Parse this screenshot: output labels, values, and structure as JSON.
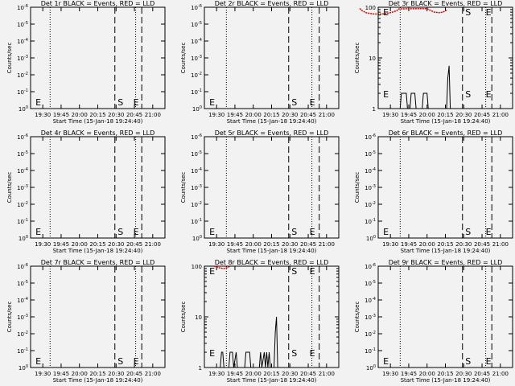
{
  "chart_data": [
    {
      "type": "line",
      "title": "Det 1r BLACK = Events, RED = LLD",
      "ylabel": "Counts/sec",
      "xlabel": "Start Time (15-Jan-18 19:24:40)",
      "yscale": "log",
      "y_tick_labels": [
        "10^0",
        "10^-1",
        "10^-2",
        "10^-3",
        "10^-4",
        "10^-5",
        "10^-6"
      ],
      "x_tick_labels": [
        "19:30",
        "19:45",
        "20:00",
        "20:15",
        "20:30",
        "20:45",
        "21:00"
      ],
      "markers": {
        "S": "20:30",
        "E": [
          "19:26",
          "20:46"
        ]
      },
      "dotted_lines": [
        "19:36",
        "20:46"
      ],
      "dashed_lines": [
        "20:29",
        "20:51"
      ],
      "series": []
    },
    {
      "type": "line",
      "title": "Det 2r BLACK = Events, RED = LLD",
      "ylabel": "Counts/sec",
      "xlabel": "Start Time (15-Jan-18 19:24:40)",
      "yscale": "log",
      "y_tick_labels": [
        "10^0",
        "10^-1",
        "10^-2",
        "10^-3",
        "10^-4",
        "10^-5",
        "10^-6"
      ],
      "x_tick_labels": [
        "19:30",
        "19:45",
        "20:00",
        "20:15",
        "20:30",
        "20:45",
        "21:00"
      ],
      "markers": {
        "S": "20:30",
        "E": [
          "19:26",
          "20:48"
        ]
      },
      "dotted_lines": [
        "19:38",
        "20:48"
      ],
      "dashed_lines": [
        "20:29",
        "20:54"
      ],
      "series": []
    },
    {
      "type": "line",
      "title": "Det 3r BLACK = Events, RED = LLD",
      "ylabel": "Counts/sec",
      "xlabel": "Start Time (15-Jan-18 19:24:40)",
      "yscale": "log",
      "y_tick_labels": [
        "1",
        "10",
        "100"
      ],
      "x_tick_labels": [
        "19:30",
        "19:45",
        "20:00",
        "20:15",
        "20:30",
        "20:45",
        "21:00"
      ],
      "markers": {
        "S": "20:30",
        "E": [
          "19:26",
          "20:50"
        ]
      },
      "dotted_lines": [
        "19:38",
        "20:48"
      ],
      "dashed_lines": [
        "20:29",
        "20:53"
      ],
      "series": [
        {
          "name": "Events",
          "color": "#000000",
          "points": [
            [
              1160,
              1
            ],
            [
              1178,
              1
            ],
            [
              1179,
              2
            ],
            [
              1183,
              2
            ],
            [
              1184,
              1
            ],
            [
              1186,
              1
            ],
            [
              1187,
              2
            ],
            [
              1190,
              2
            ],
            [
              1191,
              1
            ],
            [
              1196,
              1
            ],
            [
              1197,
              2
            ],
            [
              1200,
              2
            ],
            [
              1201,
              1
            ],
            [
              1216,
              1
            ],
            [
              1217,
              4
            ],
            [
              1218,
              7
            ],
            [
              1219,
              1
            ]
          ]
        },
        {
          "name": "LLD",
          "color": "#e00000",
          "points": [
            [
              1145,
              95
            ],
            [
              1146,
              88
            ],
            [
              1150,
              78
            ],
            [
              1155,
              74
            ],
            [
              1160,
              73
            ],
            [
              1165,
              74
            ],
            [
              1170,
              78
            ],
            [
              1175,
              85
            ],
            [
              1177,
              93
            ],
            [
              1200,
              94
            ],
            [
              1203,
              86
            ],
            [
              1206,
              80
            ],
            [
              1210,
              78
            ],
            [
              1213,
              80
            ],
            [
              1216,
              88
            ]
          ]
        }
      ]
    },
    {
      "type": "line",
      "title": "Det 4r BLACK = Events, RED = LLD",
      "ylabel": "Counts/sec",
      "xlabel": "Start Time (15-Jan-18 19:24:40)",
      "yscale": "log",
      "y_tick_labels": [
        "10^0",
        "10^-1",
        "10^-2",
        "10^-3",
        "10^-4",
        "10^-5",
        "10^-6"
      ],
      "x_tick_labels": [
        "19:30",
        "19:45",
        "20:00",
        "20:15",
        "20:30",
        "20:45",
        "21:00"
      ],
      "markers": {
        "S": "20:30",
        "E": [
          "19:26",
          "20:46"
        ]
      },
      "dotted_lines": [
        "19:36",
        "20:46"
      ],
      "dashed_lines": [
        "20:29",
        "20:51"
      ],
      "series": []
    },
    {
      "type": "line",
      "title": "Det 5r BLACK = Events, RED = LLD",
      "ylabel": "Counts/sec",
      "xlabel": "Start Time (15-Jan-18 19:24:40)",
      "yscale": "log",
      "y_tick_labels": [
        "10^0",
        "10^-1",
        "10^-2",
        "10^-3",
        "10^-4",
        "10^-5",
        "10^-6"
      ],
      "x_tick_labels": [
        "19:30",
        "19:45",
        "20:00",
        "20:15",
        "20:30",
        "20:45",
        "21:00"
      ],
      "markers": {
        "S": "20:30",
        "E": [
          "19:26",
          "20:48"
        ]
      },
      "dotted_lines": [
        "19:38",
        "20:48"
      ],
      "dashed_lines": [
        "20:29",
        "20:54"
      ],
      "series": []
    },
    {
      "type": "line",
      "title": "Det 6r BLACK = Events, RED = LLD",
      "ylabel": "Counts/sec",
      "xlabel": "Start Time (15-Jan-18 19:24:40)",
      "yscale": "log",
      "y_tick_labels": [
        "10^0",
        "10^-1",
        "10^-2",
        "10^-3",
        "10^-4",
        "10^-5",
        "10^-6"
      ],
      "x_tick_labels": [
        "19:30",
        "19:45",
        "20:00",
        "20:15",
        "20:30",
        "20:45",
        "21:00"
      ],
      "markers": {
        "S": "20:30",
        "E": [
          "19:26",
          "20:50"
        ]
      },
      "dotted_lines": [
        "19:38",
        "20:48"
      ],
      "dashed_lines": [
        "20:29",
        "20:53"
      ],
      "series": []
    },
    {
      "type": "line",
      "title": "Det 7r BLACK = Events, RED = LLD",
      "ylabel": "Counts/sec",
      "xlabel": "Start Time (15-Jan-18 19:24:40)",
      "yscale": "log",
      "y_tick_labels": [
        "10^0",
        "10^-1",
        "10^-2",
        "10^-3",
        "10^-4",
        "10^-5",
        "10^-6"
      ],
      "x_tick_labels": [
        "19:30",
        "19:45",
        "20:00",
        "20:15",
        "20:30",
        "20:45",
        "21:00"
      ],
      "markers": {
        "S": "20:30",
        "E": [
          "19:26",
          "20:46"
        ]
      },
      "dotted_lines": [
        "19:36",
        "20:46"
      ],
      "dashed_lines": [
        "20:29",
        "20:51"
      ],
      "series": []
    },
    {
      "type": "line",
      "title": "Det 8r BLACK = Events, RED = LLD",
      "ylabel": "Counts/sec",
      "xlabel": "Start Time (15-Jan-18 19:24:40)",
      "yscale": "log",
      "y_tick_labels": [
        "1",
        "10",
        "100"
      ],
      "x_tick_labels": [
        "19:30",
        "19:45",
        "20:00",
        "20:15",
        "20:30",
        "20:45",
        "21:00"
      ],
      "markers": {
        "S": "20:30",
        "E": [
          "19:26",
          "20:48"
        ]
      },
      "dotted_lines": [
        "19:38",
        "20:48"
      ],
      "dashed_lines": [
        "20:29",
        "20:54"
      ],
      "series": [
        {
          "name": "Events",
          "color": "#000000",
          "points": [
            [
              1170,
              1
            ],
            [
              1173,
              1
            ],
            [
              1174,
              2
            ],
            [
              1175,
              2
            ],
            [
              1176,
              1
            ],
            [
              1180,
              1
            ],
            [
              1181,
              2
            ],
            [
              1183,
              2
            ],
            [
              1184,
              1
            ],
            [
              1186,
              2
            ],
            [
              1187,
              1
            ],
            [
              1193,
              1
            ],
            [
              1194,
              2
            ],
            [
              1197,
              2
            ],
            [
              1198,
              1
            ],
            [
              1205,
              1
            ],
            [
              1206,
              2
            ],
            [
              1207,
              1
            ],
            [
              1209,
              2
            ],
            [
              1210,
              1
            ],
            [
              1211,
              2
            ],
            [
              1212,
              1
            ],
            [
              1213,
              2
            ],
            [
              1214,
              1
            ],
            [
              1217,
              1
            ],
            [
              1218,
              5
            ],
            [
              1219,
              10
            ],
            [
              1220,
              1
            ]
          ]
        },
        {
          "name": "LLD",
          "color": "#e00000",
          "points": [
            [
              1168,
              100
            ],
            [
              1170,
              96
            ],
            [
              1173,
              92
            ],
            [
              1176,
              90
            ],
            [
              1179,
              94
            ],
            [
              1181,
              100
            ]
          ]
        }
      ]
    },
    {
      "type": "line",
      "title": "Det 9r BLACK = Events, RED = LLD",
      "ylabel": "Counts/sec",
      "xlabel": "Start Time (15-Jan-18 19:24:40)",
      "yscale": "log",
      "y_tick_labels": [
        "10^0",
        "10^-1",
        "10^-2",
        "10^-3",
        "10^-4",
        "10^-5",
        "10^-6"
      ],
      "x_tick_labels": [
        "19:30",
        "19:45",
        "20:00",
        "20:15",
        "20:30",
        "20:45",
        "21:00"
      ],
      "markers": {
        "S": "20:30",
        "E": [
          "19:26",
          "20:50"
        ]
      },
      "dotted_lines": [
        "19:38",
        "20:48"
      ],
      "dashed_lines": [
        "20:29",
        "20:53"
      ],
      "series": []
    }
  ]
}
